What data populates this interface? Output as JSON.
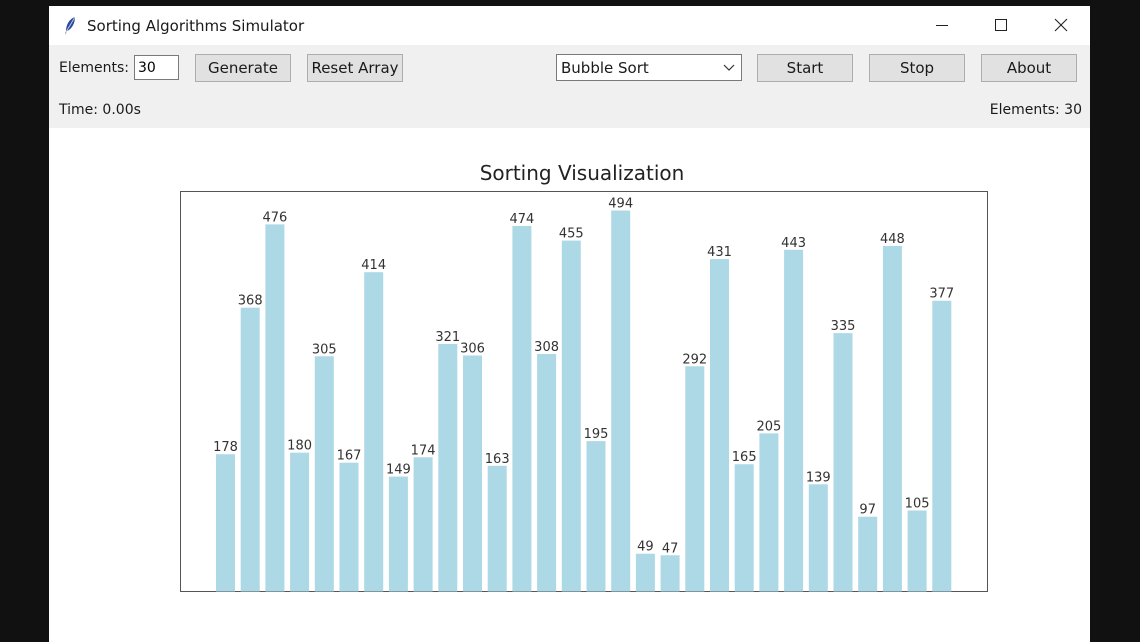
{
  "window": {
    "title": "Sorting Algorithms Simulator",
    "app_icon": "feather-icon"
  },
  "toolbar": {
    "elements_label": "Elements:",
    "elements_value": "30",
    "generate_label": "Generate",
    "reset_label": "Reset Array",
    "algorithm_selected": "Bubble Sort",
    "start_label": "Start",
    "stop_label": "Stop",
    "about_label": "About"
  },
  "status": {
    "time_text": "Time: 0.00s",
    "elements_text": "Elements: 30"
  },
  "colors": {
    "bar": "#add8e6",
    "axes": "#555555",
    "label": "#333333"
  },
  "chart_data": {
    "type": "bar",
    "title": "Sorting Visualization",
    "values": [
      178,
      368,
      476,
      180,
      305,
      167,
      414,
      149,
      174,
      321,
      306,
      163,
      474,
      308,
      455,
      195,
      494,
      49,
      47,
      292,
      431,
      165,
      205,
      443,
      139,
      335,
      97,
      448,
      105,
      377
    ],
    "ylim": [
      0,
      494
    ],
    "grid": false,
    "data_labels": true,
    "axis_ticks": false
  }
}
